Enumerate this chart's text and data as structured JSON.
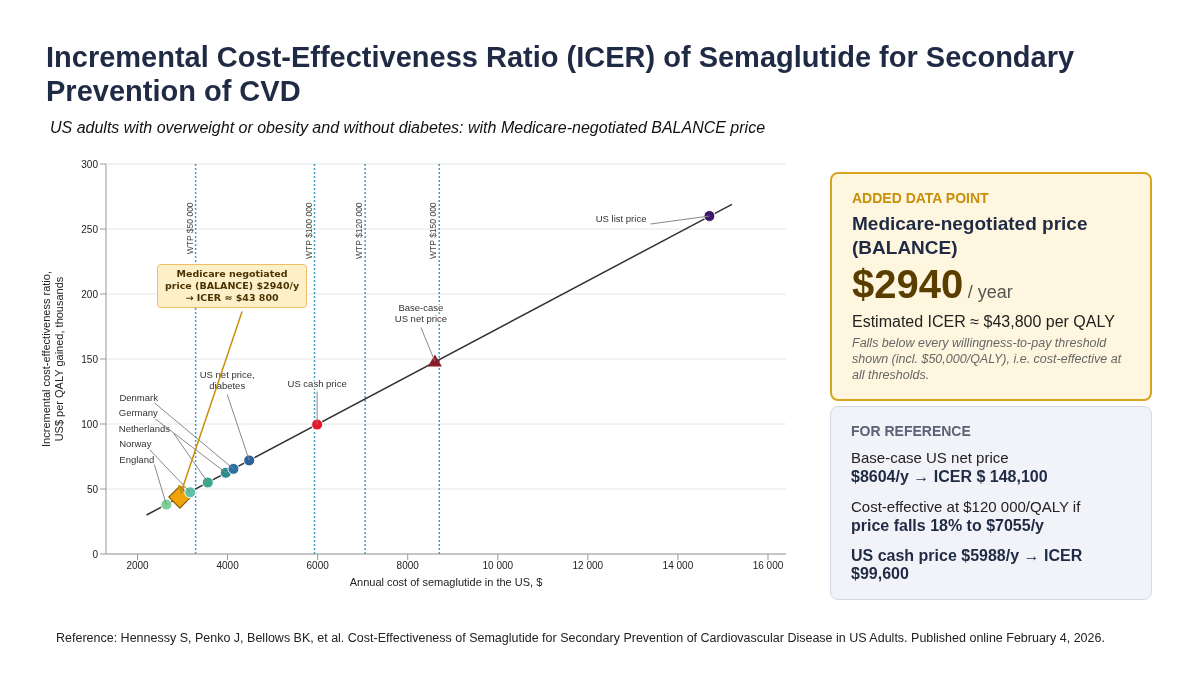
{
  "chart_data": {
    "type": "scatter",
    "title": "Incremental Cost-Effectiveness Ratio (ICER) of Semaglutide for Secondary Prevention of CVD",
    "subtitle": "US adults with overweight or obesity and without diabetes: with Medicare-negotiated BALANCE price",
    "xlabel": "Annual cost of semaglutide in the US, $",
    "ylabel": "Incremental cost-effectiveness ratio, US$ per QALY gained, thousands",
    "xlim": [
      1300,
      16400
    ],
    "xticks": [
      2000,
      4000,
      6000,
      8000,
      {
        "value": 10000,
        "label": "10 000"
      },
      {
        "value": 12000,
        "label": "12 000"
      },
      {
        "value": 14000,
        "label": "14 000"
      },
      {
        "value": 16000,
        "label": "16 000"
      }
    ],
    "ylim": [
      0,
      300
    ],
    "yticks": [
      0,
      50,
      100,
      150,
      200,
      250,
      300
    ],
    "grid": "y",
    "legend": false,
    "series": [
      {
        "type": "line",
        "color": "#333333",
        "marker": "none",
        "x": [
          2200,
          15200
        ],
        "values": [
          30,
          269
        ]
      },
      {
        "name": "England",
        "color": "#7fcf9a",
        "marker": "circle",
        "x": [
          2640
        ],
        "values": [
          38
        ]
      },
      {
        "color": "#f0a30a",
        "marker": "diamond",
        "x": [
          2940
        ],
        "values": [
          43.8
        ]
      },
      {
        "name": "Norway",
        "color": "#5cc2a4",
        "marker": "circle",
        "x": [
          3170
        ],
        "values": [
          47.5
        ]
      },
      {
        "name": "Netherlands",
        "color": "#3aa88f",
        "marker": "circle",
        "x": [
          3560
        ],
        "values": [
          55
        ]
      },
      {
        "name": "Germany",
        "color": "#2a8c8c",
        "marker": "circle",
        "x": [
          3960
        ],
        "values": [
          62.5
        ]
      },
      {
        "name": "Denmark",
        "color": "#2d6ea4",
        "marker": "circle",
        "x": [
          4130
        ],
        "values": [
          65.5
        ]
      },
      {
        "name": "US net price, diabetes",
        "color": "#2c5f9e",
        "marker": "circle",
        "x": [
          4480
        ],
        "values": [
          72
        ]
      },
      {
        "name": "US cash price",
        "color": "#e3162b",
        "marker": "circle",
        "x": [
          5988
        ],
        "values": [
          99.6
        ]
      },
      {
        "name": "Base-case US net price",
        "color": "#8b1a2a",
        "marker": "triangle",
        "x": [
          8604
        ],
        "values": [
          148.1
        ]
      },
      {
        "name": "US list price",
        "color": "#3b1a6b",
        "marker": "circle",
        "x": [
          14700
        ],
        "values": [
          260
        ]
      }
    ],
    "ref_lines": [
      {
        "axis": "x",
        "value": 3290,
        "label": "WTP $50 000",
        "color": "#3a9fc4",
        "line_style": "dotted"
      },
      {
        "axis": "x",
        "value": 5930,
        "label": "WTP $100 000",
        "color": "#3a9fc4",
        "line_style": "dotted"
      },
      {
        "axis": "x",
        "value": 7055,
        "label": "WTP $120 000",
        "color": "#3a9fc4",
        "line_style": "dotted"
      },
      {
        "axis": "x",
        "value": 8700,
        "label": "WTP $150 000",
        "color": "#3a9fc4",
        "line_style": "dotted"
      }
    ],
    "annotations": [
      "Reference: Hennessy S, Penko J, Bellows BK, et al. Cost-Effectiveness of Semaglutide for Secondary Prevention of Cardiovascular Disease in US Adults. Published online February 4, 2026.",
      "ADDED DATA POINT",
      "Medicare-negotiated price (BALANCE)",
      "$2940",
      "/ year",
      "Estimated ICER ≈ $43,800 per QALY",
      "Falls below every willingness-to-pay threshold shown (incl. $50,000/QALY), i.e. cost-effective at all thresholds.",
      "FOR REFERENCE",
      "Base-case US net price",
      "$8604/y → ICER $  148,100",
      "Cost-effective at $120 000/QALY if",
      "price falls 18% to $7055/y",
      "US cash price $5988/y →  ICER $99,600",
      {
        "text": "Medicare negotiated price (BALANCE) $2940/y  →  ICER ≈ $43 800",
        "x": 2940,
        "y": 43.8
      }
    ]
  }
}
